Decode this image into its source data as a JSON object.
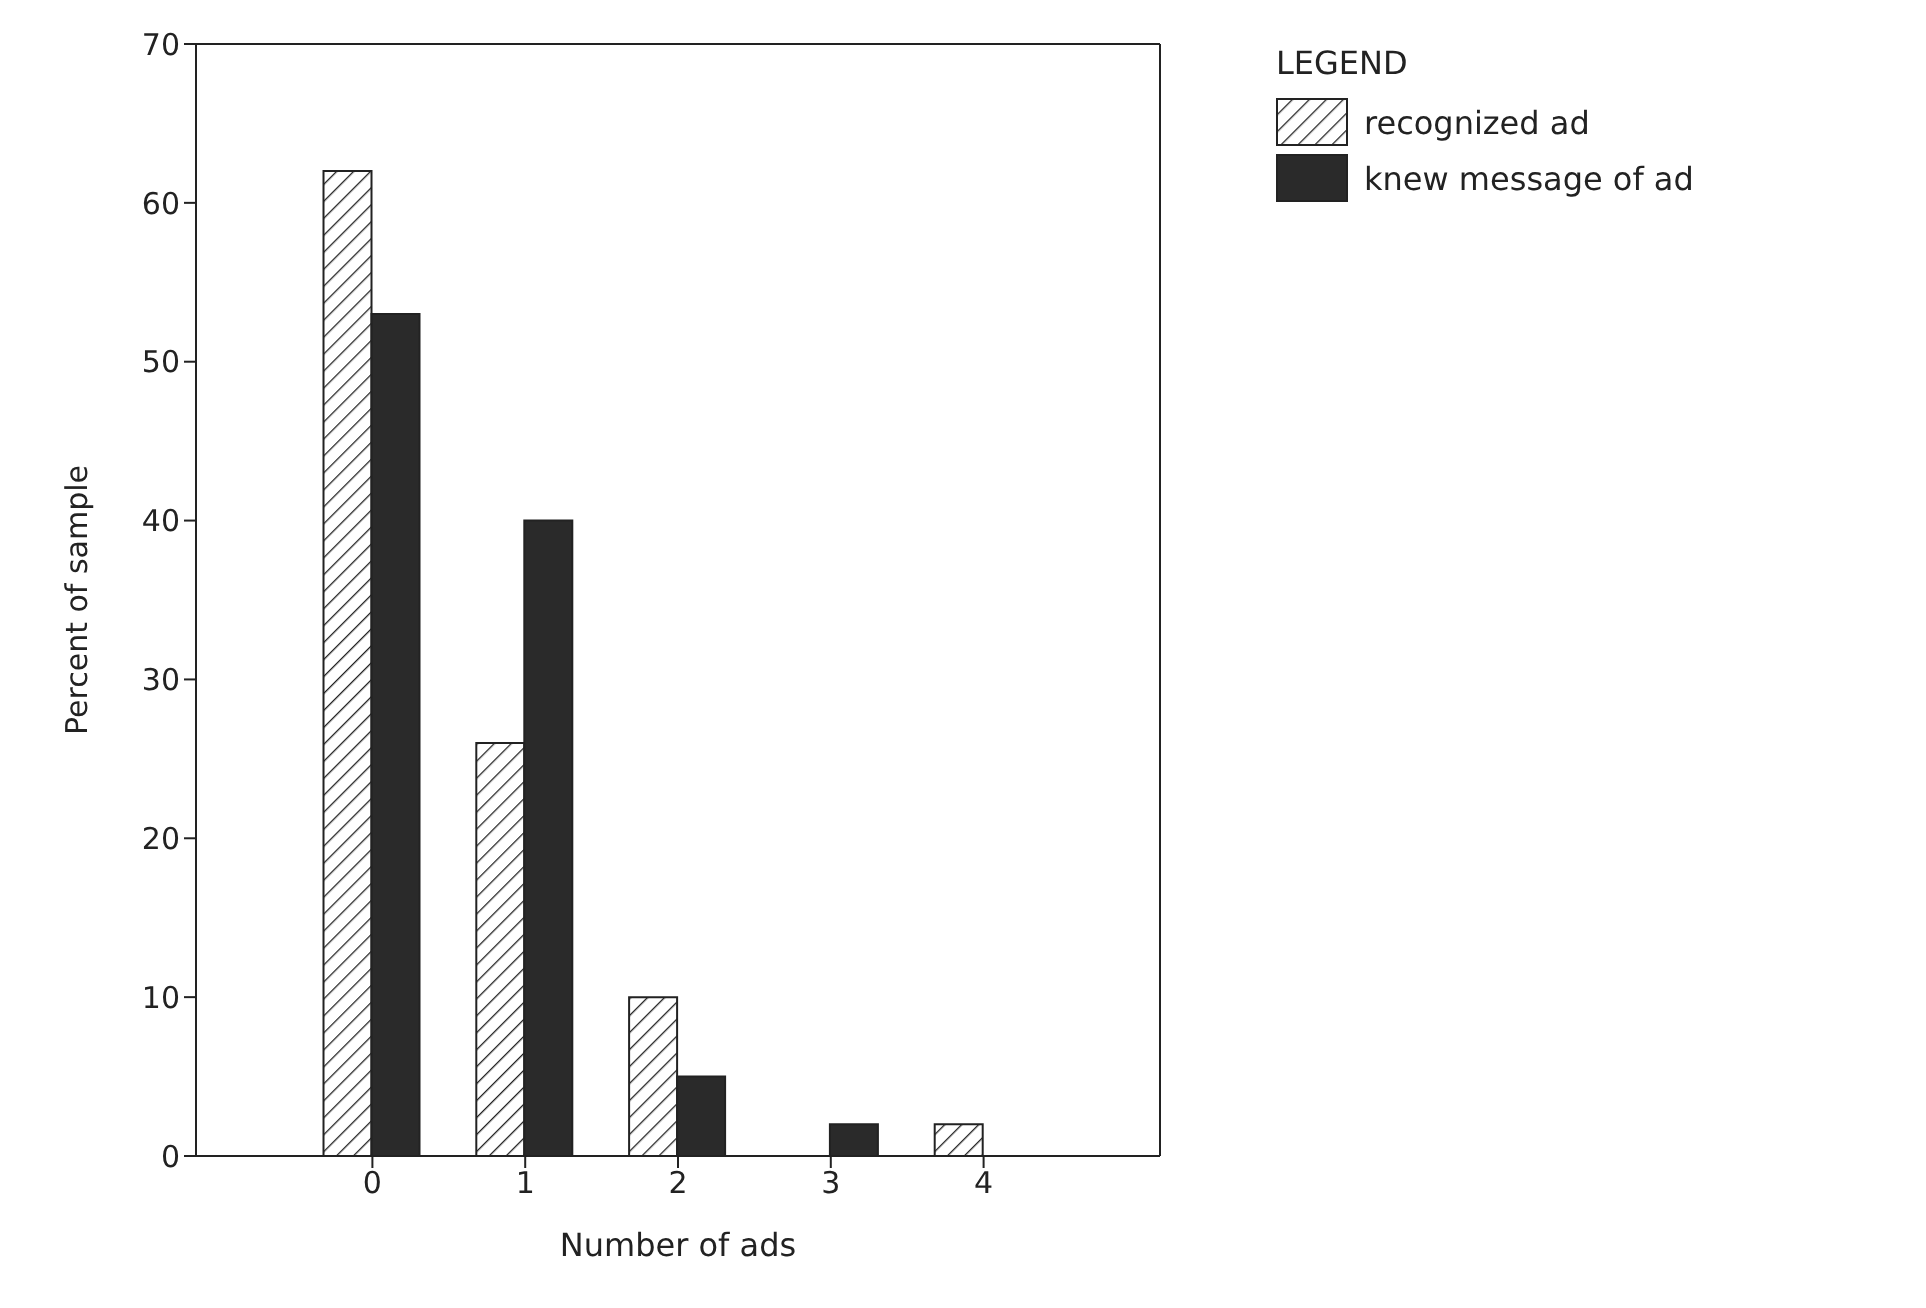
{
  "chart_data": {
    "type": "bar",
    "xlabel": "Number of ads",
    "ylabel": "Percent of sample",
    "legend_title": "LEGEND",
    "categories": [
      "0",
      "1",
      "2",
      "3",
      "4"
    ],
    "series": [
      {
        "name": "recognized ad",
        "color": "#222222",
        "values": [
          62,
          26,
          10,
          null,
          2
        ]
      },
      {
        "name": "knew message of ad",
        "color": "#2a2a2a",
        "values": [
          53,
          40,
          5,
          2,
          null
        ]
      }
    ],
    "ylim": [
      0,
      70
    ],
    "yticks": [
      0,
      10,
      20,
      30,
      40,
      50,
      60,
      70
    ],
    "grid": false,
    "legend": "top right"
  }
}
